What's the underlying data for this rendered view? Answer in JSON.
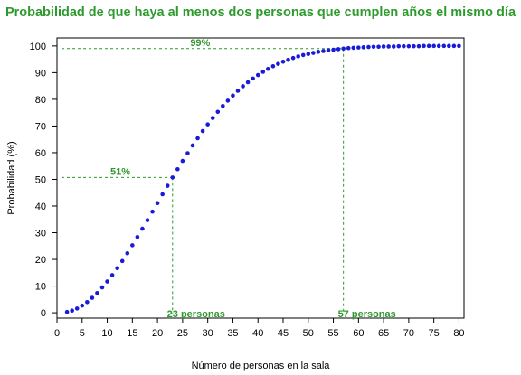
{
  "colors": {
    "title": "#2e9a2e",
    "annotation": "#2e9a2e",
    "points": "#1a1adb",
    "axis": "#000000"
  },
  "chart_data": {
    "type": "scatter",
    "title": "Probabilidad de que haya al menos dos personas que cumplen años el mismo día",
    "xlabel": "Número de personas en la sala",
    "ylabel": "Probabilidad (%)",
    "xlim": [
      0,
      81
    ],
    "ylim": [
      -2,
      103
    ],
    "xticks": [
      0,
      5,
      10,
      15,
      20,
      25,
      30,
      35,
      40,
      45,
      50,
      55,
      60,
      65,
      70,
      75,
      80
    ],
    "yticks": [
      0,
      10,
      20,
      30,
      40,
      50,
      60,
      70,
      80,
      90,
      100
    ],
    "grid": false,
    "x": [
      2,
      3,
      4,
      5,
      6,
      7,
      8,
      9,
      10,
      11,
      12,
      13,
      14,
      15,
      16,
      17,
      18,
      19,
      20,
      21,
      22,
      23,
      24,
      25,
      26,
      27,
      28,
      29,
      30,
      31,
      32,
      33,
      34,
      35,
      36,
      37,
      38,
      39,
      40,
      41,
      42,
      43,
      44,
      45,
      46,
      47,
      48,
      49,
      50,
      51,
      52,
      53,
      54,
      55,
      56,
      57,
      58,
      59,
      60,
      61,
      62,
      63,
      64,
      65,
      66,
      67,
      68,
      69,
      70,
      71,
      72,
      73,
      74,
      75,
      76,
      77,
      78,
      79,
      80
    ],
    "y": [
      0.3,
      0.8,
      1.6,
      2.7,
      4.0,
      5.6,
      7.4,
      9.5,
      11.7,
      14.1,
      16.7,
      19.4,
      22.3,
      25.3,
      28.4,
      31.5,
      34.7,
      37.9,
      41.1,
      44.4,
      47.6,
      50.7,
      53.8,
      56.9,
      59.8,
      62.7,
      65.4,
      68.1,
      70.6,
      73.0,
      75.3,
      77.5,
      79.5,
      81.4,
      83.2,
      84.9,
      86.4,
      87.8,
      89.1,
      90.3,
      91.4,
      92.4,
      93.3,
      94.1,
      94.8,
      95.5,
      96.1,
      96.6,
      97.0,
      97.4,
      97.8,
      98.1,
      98.4,
      98.6,
      98.8,
      99.0,
      99.2,
      99.3,
      99.4,
      99.5,
      99.6,
      99.7,
      99.7,
      99.8,
      99.8,
      99.8,
      99.9,
      99.9,
      99.9,
      99.9,
      99.9,
      100.0,
      100.0,
      100.0,
      100.0,
      100.0,
      100.0,
      100.0,
      100.0
    ],
    "annotations": [
      {
        "label": "51%",
        "x": 23,
        "y": 50.7
      },
      {
        "label": "99%",
        "x": 57,
        "y": 99.0
      },
      {
        "label": "23 personas",
        "x": 23,
        "y": 50.7
      },
      {
        "label": "57 personas",
        "x": 57,
        "y": 99.0
      }
    ]
  }
}
